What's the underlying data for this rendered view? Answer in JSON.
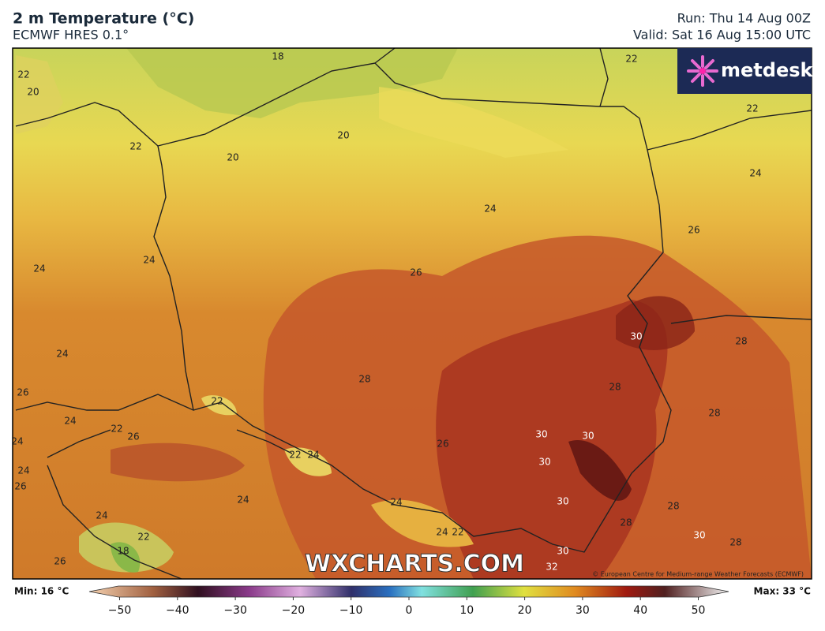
{
  "header": {
    "title": "2 m Temperature (°C)",
    "model": "ECMWF HRES 0.1°",
    "run": "Run: Thu 14 Aug 00Z",
    "valid": "Valid: Sat 16 Aug 15:00 UTC"
  },
  "logo": "metdesk",
  "watermark": "WXCHARTS.COM",
  "credit": "© European Centre for Medium-range Weather Forecasts (ECMWF)",
  "contour_labels": [
    18,
    22,
    22,
    20,
    22,
    22,
    20,
    20,
    24,
    24,
    26,
    24,
    24,
    26,
    30,
    28,
    24,
    28,
    28,
    26,
    22,
    28,
    24,
    22,
    26,
    30,
    30,
    26,
    24,
    22,
    24,
    30,
    24,
    26,
    24,
    24,
    30,
    28,
    24,
    28,
    24,
    22,
    22,
    30,
    28,
    18,
    30,
    26,
    32
  ],
  "colorbar": {
    "min": "Min: 16 °C",
    "max": "Max: 33 °C",
    "ticks": [
      {
        "value": -50,
        "label": "−50"
      },
      {
        "value": -40,
        "label": "−40"
      },
      {
        "value": -30,
        "label": "−30"
      },
      {
        "value": -20,
        "label": "−20"
      },
      {
        "value": -10,
        "label": "−10"
      },
      0,
      10,
      20,
      30,
      40,
      50
    ]
  }
}
